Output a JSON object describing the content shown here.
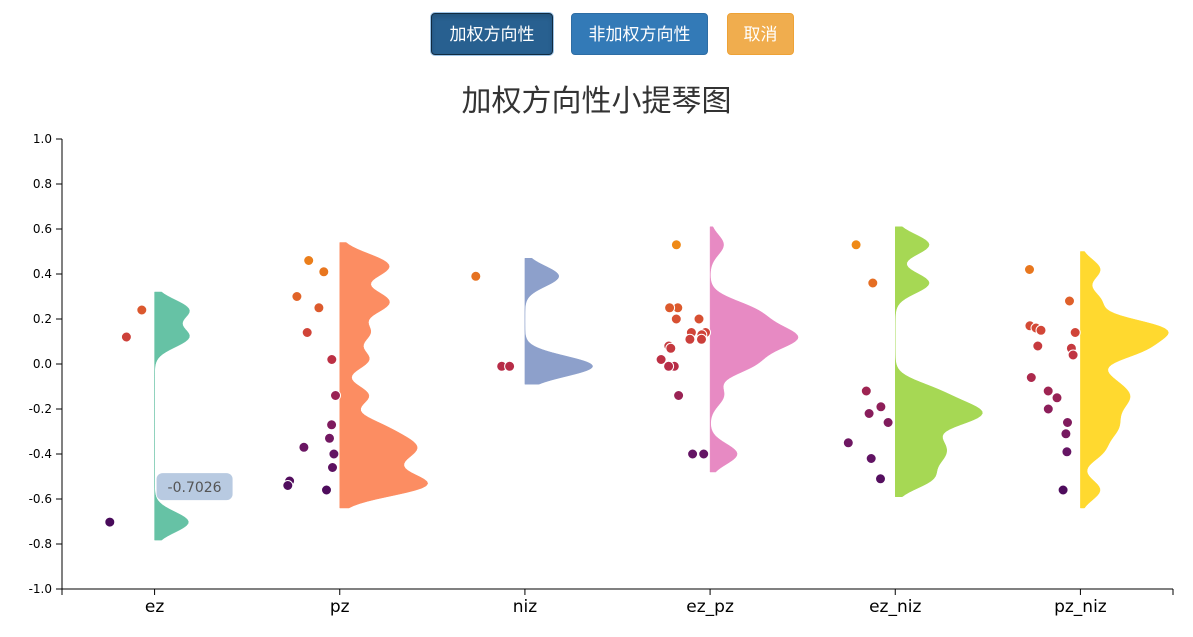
{
  "buttons": {
    "weighted": "加权方向性",
    "unweighted": "非加权方向性",
    "cancel": "取消"
  },
  "chart_data": {
    "type": "violin",
    "title": "加权方向性小提琴图",
    "xlabel": "",
    "ylabel": "",
    "ylim": [
      -1.0,
      1.0
    ],
    "yticks": [
      "1.0",
      "0.8",
      "0.6",
      "0.4",
      "0.2",
      "0.0",
      "-0.2",
      "-0.4",
      "-0.6",
      "-0.8",
      "-1.0"
    ],
    "grid": false,
    "categories": [
      "ez",
      "pz",
      "niz",
      "ez_pz",
      "ez_niz",
      "pz_niz"
    ],
    "colors": {
      "ez": "#66c2a5",
      "pz": "#fc8d62",
      "niz": "#8da0cb",
      "ez_pz": "#e78ac3",
      "ez_niz": "#a6d854",
      "pz_niz": "#ffd92f"
    },
    "series": [
      {
        "category": "ez",
        "values": [
          0.24,
          0.12,
          -0.7026
        ]
      },
      {
        "category": "pz",
        "values": [
          0.46,
          0.41,
          0.3,
          0.25,
          0.14,
          0.02,
          -0.14,
          -0.27,
          -0.33,
          -0.37,
          -0.4,
          -0.46,
          -0.52,
          -0.54,
          -0.56
        ]
      },
      {
        "category": "niz",
        "values": [
          0.39,
          -0.01,
          -0.01
        ]
      },
      {
        "category": "ez_pz",
        "values": [
          0.53,
          0.25,
          0.25,
          0.2,
          0.2,
          0.14,
          0.14,
          0.13,
          0.11,
          0.11,
          0.08,
          0.07,
          0.02,
          -0.01,
          -0.01,
          -0.14,
          -0.4,
          -0.4
        ]
      },
      {
        "category": "ez_niz",
        "values": [
          0.53,
          0.36,
          -0.12,
          -0.19,
          -0.22,
          -0.26,
          -0.35,
          -0.42,
          -0.51
        ]
      },
      {
        "category": "pz_niz",
        "values": [
          0.42,
          0.28,
          0.17,
          0.16,
          0.15,
          0.14,
          0.08,
          0.07,
          0.04,
          -0.06,
          -0.12,
          -0.15,
          -0.2,
          -0.26,
          -0.31,
          -0.39,
          -0.56
        ]
      }
    ],
    "tooltip": {
      "category": "ez",
      "value": "-0.7026"
    }
  }
}
